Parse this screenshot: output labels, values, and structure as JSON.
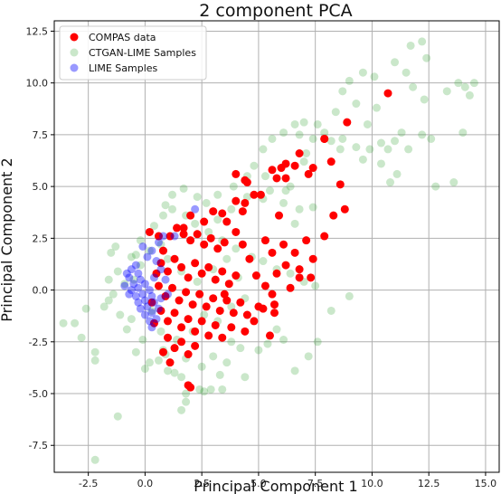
{
  "chart_data": {
    "type": "scatter",
    "title": "2 component PCA",
    "xlabel": "Principal Component 1",
    "ylabel": "Principal Component 2",
    "xlim": [
      -4.0,
      15.6
    ],
    "ylim": [
      -8.8,
      13.0
    ],
    "xticks": [
      -2.5,
      0.0,
      2.5,
      5.0,
      7.5,
      10.0,
      12.5,
      15.0
    ],
    "yticks": [
      -7.5,
      -5.0,
      -2.5,
      0.0,
      2.5,
      5.0,
      7.5,
      10.0,
      12.5
    ],
    "grid": true,
    "legend_position": "top-left",
    "series": [
      {
        "name": "CTGAN-LIME Samples",
        "color": "#2ca02c",
        "alpha": 0.25,
        "points": [
          [
            -3.6,
            -1.6
          ],
          [
            -3.1,
            -1.6
          ],
          [
            -2.8,
            -2.3
          ],
          [
            -2.2,
            -3.0
          ],
          [
            -2.2,
            -3.4
          ],
          [
            -2.6,
            -0.9
          ],
          [
            -1.8,
            -0.8
          ],
          [
            -1.6,
            -0.5
          ],
          [
            -1.6,
            0.5
          ],
          [
            -1.4,
            -0.2
          ],
          [
            -1.5,
            1.8
          ],
          [
            -1.3,
            2.1
          ],
          [
            -1.1,
            -1.2
          ],
          [
            -0.8,
            -1.9
          ],
          [
            -0.6,
            -1.4
          ],
          [
            -0.4,
            -3.0
          ],
          [
            -0.6,
            1.6
          ],
          [
            -0.2,
            2.4
          ],
          [
            -1.2,
            -6.1
          ],
          [
            -2.2,
            -8.2
          ],
          [
            0.0,
            -3.8
          ],
          [
            0.2,
            -3.5
          ],
          [
            0.6,
            -3.4
          ],
          [
            0.8,
            -2.9
          ],
          [
            1.0,
            -3.9
          ],
          [
            1.3,
            -4.0
          ],
          [
            1.6,
            -4.2
          ],
          [
            1.8,
            -5.0
          ],
          [
            1.6,
            -5.8
          ],
          [
            1.8,
            -5.4
          ],
          [
            2.4,
            -4.8
          ],
          [
            2.6,
            -4.9
          ],
          [
            2.9,
            -4.8
          ],
          [
            3.4,
            -4.8
          ],
          [
            3.6,
            -3.5
          ],
          [
            3.0,
            -3.2
          ],
          [
            3.8,
            -2.5
          ],
          [
            4.2,
            -2.8
          ],
          [
            4.4,
            -4.2
          ],
          [
            5.0,
            -2.9
          ],
          [
            5.4,
            -2.6
          ],
          [
            5.8,
            -1.9
          ],
          [
            6.1,
            -2.4
          ],
          [
            6.6,
            -3.9
          ],
          [
            7.2,
            -3.2
          ],
          [
            7.6,
            -2.5
          ],
          [
            8.2,
            -1.0
          ],
          [
            9.0,
            -0.3
          ],
          [
            7.5,
            0.2
          ],
          [
            7.0,
            0.4
          ],
          [
            6.4,
            0.8
          ],
          [
            5.8,
            1.0
          ],
          [
            5.2,
            1.4
          ],
          [
            4.7,
            1.6
          ],
          [
            4.0,
            2.0
          ],
          [
            3.4,
            2.4
          ],
          [
            2.8,
            2.8
          ],
          [
            2.2,
            3.2
          ],
          [
            1.8,
            3.6
          ],
          [
            1.2,
            3.9
          ],
          [
            0.8,
            3.6
          ],
          [
            0.4,
            3.1
          ],
          [
            0.6,
            2.6
          ],
          [
            3.2,
            3.4
          ],
          [
            3.8,
            3.9
          ],
          [
            4.5,
            4.5
          ],
          [
            5.3,
            5.5
          ],
          [
            5.2,
            4.4
          ],
          [
            6.1,
            4.2
          ],
          [
            6.4,
            5.0
          ],
          [
            6.2,
            4.8
          ],
          [
            6.8,
            3.9
          ],
          [
            7.4,
            4.0
          ],
          [
            6.6,
            3.2
          ],
          [
            5.5,
            4.8
          ],
          [
            6.8,
            7.5
          ],
          [
            7.1,
            6.6
          ],
          [
            7.4,
            7.3
          ],
          [
            7.0,
            6.2
          ],
          [
            7.9,
            7.6
          ],
          [
            8.2,
            7.2
          ],
          [
            8.6,
            6.8
          ],
          [
            8.7,
            7.3
          ],
          [
            9.3,
            6.9
          ],
          [
            9.6,
            6.3
          ],
          [
            9.9,
            6.8
          ],
          [
            9.8,
            8.0
          ],
          [
            10.4,
            7.1
          ],
          [
            10.2,
            8.8
          ],
          [
            10.7,
            6.8
          ],
          [
            11.0,
            7.2
          ],
          [
            11.3,
            7.6
          ],
          [
            11.6,
            6.8
          ],
          [
            12.2,
            7.5
          ],
          [
            12.6,
            7.3
          ],
          [
            12.3,
            9.2
          ],
          [
            11.8,
            9.8
          ],
          [
            11.5,
            10.5
          ],
          [
            11.0,
            11.0
          ],
          [
            11.7,
            11.8
          ],
          [
            12.2,
            12.0
          ],
          [
            12.4,
            11.2
          ],
          [
            13.3,
            9.6
          ],
          [
            13.8,
            10.0
          ],
          [
            14.1,
            9.8
          ],
          [
            14.5,
            10.0
          ],
          [
            14.3,
            9.4
          ],
          [
            14.0,
            7.6
          ],
          [
            12.8,
            5.0
          ],
          [
            13.6,
            5.2
          ],
          [
            11.1,
            5.6
          ],
          [
            10.8,
            5.2
          ],
          [
            10.4,
            6.1
          ],
          [
            10.1,
            10.3
          ],
          [
            9.6,
            10.5
          ],
          [
            9.0,
            10.1
          ],
          [
            8.7,
            9.6
          ],
          [
            9.3,
            9.0
          ],
          [
            8.4,
            8.6
          ],
          [
            7.0,
            8.1
          ],
          [
            7.6,
            8.0
          ],
          [
            6.6,
            8.0
          ],
          [
            6.1,
            7.6
          ],
          [
            5.6,
            7.3
          ],
          [
            5.2,
            6.8
          ],
          [
            4.8,
            6.0
          ],
          [
            4.5,
            5.5
          ],
          [
            3.9,
            5.0
          ],
          [
            3.2,
            4.6
          ],
          [
            2.7,
            4.2
          ],
          [
            2.3,
            4.5
          ],
          [
            1.7,
            4.9
          ],
          [
            1.2,
            4.6
          ],
          [
            0.9,
            4.1
          ],
          [
            -0.4,
            1.7
          ],
          [
            -0.2,
            1.2
          ],
          [
            0.3,
            -1.0
          ],
          [
            0.7,
            -2.0
          ],
          [
            1.4,
            -2.4
          ],
          [
            2.1,
            -2.0
          ],
          [
            2.6,
            -1.2
          ],
          [
            3.2,
            -1.5
          ],
          [
            3.8,
            -0.8
          ],
          [
            4.4,
            -0.4
          ],
          [
            3.0,
            1.0
          ],
          [
            3.6,
            1.5
          ],
          [
            4.1,
            0.6
          ],
          [
            2.3,
            0.4
          ],
          [
            1.6,
            0.9
          ],
          [
            1.0,
            1.5
          ],
          [
            -0.1,
            -2.4
          ],
          [
            0.9,
            -3.1
          ],
          [
            1.8,
            -3.3
          ],
          [
            2.5,
            -3.7
          ],
          [
            3.3,
            -4.1
          ],
          [
            -0.9,
            0.3
          ],
          [
            -1.2,
            0.9
          ],
          [
            -0.5,
            0.5
          ],
          [
            0.2,
            1.9
          ],
          [
            0.7,
            2.2
          ]
        ]
      },
      {
        "name": "COMPAS data",
        "color": "#ff0000",
        "alpha": 1.0,
        "points": [
          [
            0.2,
            2.8
          ],
          [
            0.6,
            2.6
          ],
          [
            0.8,
            1.9
          ],
          [
            1.1,
            2.6
          ],
          [
            1.4,
            3.0
          ],
          [
            1.7,
            2.7
          ],
          [
            2.0,
            2.4
          ],
          [
            2.3,
            2.7
          ],
          [
            2.6,
            2.2
          ],
          [
            2.9,
            2.5
          ],
          [
            3.2,
            2.0
          ],
          [
            3.5,
            2.3
          ],
          [
            0.7,
            1.3
          ],
          [
            1.0,
            0.9
          ],
          [
            1.3,
            1.5
          ],
          [
            1.6,
            1.1
          ],
          [
            1.9,
            0.6
          ],
          [
            2.2,
            1.3
          ],
          [
            2.5,
            0.8
          ],
          [
            2.8,
            1.1
          ],
          [
            3.1,
            0.5
          ],
          [
            3.4,
            0.9
          ],
          [
            3.7,
            0.3
          ],
          [
            4.0,
            0.7
          ],
          [
            0.6,
            0.2
          ],
          [
            0.9,
            -0.3
          ],
          [
            1.2,
            0.1
          ],
          [
            1.5,
            -0.5
          ],
          [
            1.8,
            -0.1
          ],
          [
            2.1,
            -0.7
          ],
          [
            2.4,
            -0.2
          ],
          [
            2.7,
            -0.8
          ],
          [
            3.0,
            -0.4
          ],
          [
            3.3,
            -1.0
          ],
          [
            3.6,
            -0.5
          ],
          [
            3.9,
            -1.1
          ],
          [
            4.2,
            -0.6
          ],
          [
            4.5,
            -1.2
          ],
          [
            0.7,
            -1.0
          ],
          [
            1.0,
            -1.5
          ],
          [
            1.3,
            -1.1
          ],
          [
            1.6,
            -1.8
          ],
          [
            1.9,
            -1.4
          ],
          [
            2.2,
            -2.0
          ],
          [
            2.5,
            -1.5
          ],
          [
            2.8,
            -2.2
          ],
          [
            3.1,
            -1.7
          ],
          [
            3.4,
            -2.3
          ],
          [
            1.0,
            -2.3
          ],
          [
            1.3,
            -2.8
          ],
          [
            1.6,
            -2.5
          ],
          [
            1.9,
            -3.1
          ],
          [
            2.2,
            -2.7
          ],
          [
            0.8,
            -3.0
          ],
          [
            1.1,
            -3.5
          ],
          [
            0.4,
            -1.6
          ],
          [
            0.5,
            0.8
          ],
          [
            0.3,
            -0.6
          ],
          [
            4.0,
            2.8
          ],
          [
            4.3,
            2.2
          ],
          [
            4.6,
            1.5
          ],
          [
            4.9,
            0.7
          ],
          [
            5.3,
            0.2
          ],
          [
            5.6,
            -0.2
          ],
          [
            5.0,
            -0.8
          ],
          [
            4.8,
            -1.5
          ],
          [
            4.4,
            -2.0
          ],
          [
            3.8,
            -1.8
          ],
          [
            3.5,
            -0.2
          ],
          [
            5.8,
            0.8
          ],
          [
            6.2,
            1.2
          ],
          [
            6.6,
            1.8
          ],
          [
            7.1,
            2.4
          ],
          [
            7.4,
            1.5
          ],
          [
            7.9,
            2.6
          ],
          [
            8.3,
            3.6
          ],
          [
            8.8,
            3.9
          ],
          [
            8.6,
            5.1
          ],
          [
            8.2,
            6.2
          ],
          [
            7.9,
            7.3
          ],
          [
            7.2,
            5.6
          ],
          [
            6.6,
            6.0
          ],
          [
            6.2,
            5.4
          ],
          [
            5.9,
            3.6
          ],
          [
            6.0,
            5.9
          ],
          [
            5.6,
            5.8
          ],
          [
            5.1,
            4.6
          ],
          [
            4.8,
            4.6
          ],
          [
            4.4,
            4.2
          ],
          [
            4.3,
            3.8
          ],
          [
            4.0,
            4.3
          ],
          [
            3.6,
            3.3
          ],
          [
            3.0,
            3.8
          ],
          [
            2.6,
            3.3
          ],
          [
            2.0,
            3.6
          ],
          [
            1.7,
            3.0
          ],
          [
            5.3,
            2.4
          ],
          [
            5.6,
            1.8
          ],
          [
            6.1,
            2.2
          ],
          [
            6.8,
            1.0
          ],
          [
            7.3,
            0.6
          ],
          [
            6.4,
            0.1
          ],
          [
            6.8,
            0.6
          ],
          [
            5.7,
            -0.7
          ],
          [
            5.5,
            -2.2
          ],
          [
            5.7,
            -1.1
          ],
          [
            5.2,
            -0.9
          ],
          [
            2.0,
            -4.7
          ],
          [
            1.9,
            -4.6
          ],
          [
            10.7,
            9.5
          ],
          [
            8.9,
            8.1
          ],
          [
            7.9,
            7.3
          ],
          [
            7.4,
            5.9
          ],
          [
            6.8,
            6.6
          ],
          [
            6.2,
            6.1
          ],
          [
            4.0,
            5.6
          ],
          [
            5.8,
            5.4
          ],
          [
            4.4,
            5.3
          ],
          [
            4.5,
            5.2
          ],
          [
            3.4,
            3.7
          ]
        ]
      },
      {
        "name": "LIME Samples",
        "color": "#0000ff",
        "alpha": 0.4,
        "points": [
          [
            -0.6,
            1.0
          ],
          [
            -0.4,
            1.2
          ],
          [
            -0.7,
            0.6
          ],
          [
            -0.3,
            0.8
          ],
          [
            -0.5,
            0.3
          ],
          [
            -0.2,
            0.5
          ],
          [
            -0.6,
            0.0
          ],
          [
            -0.3,
            0.1
          ],
          [
            0.0,
            0.3
          ],
          [
            -0.4,
            -0.3
          ],
          [
            -0.1,
            -0.2
          ],
          [
            0.2,
            0.0
          ],
          [
            -0.3,
            -0.6
          ],
          [
            0.0,
            -0.5
          ],
          [
            0.3,
            -0.3
          ],
          [
            -0.2,
            -0.9
          ],
          [
            0.1,
            -0.8
          ],
          [
            0.4,
            -0.6
          ],
          [
            0.0,
            -1.2
          ],
          [
            0.3,
            -1.1
          ],
          [
            0.6,
            -0.9
          ],
          [
            0.2,
            -1.5
          ],
          [
            0.5,
            -1.4
          ],
          [
            0.3,
            -1.8
          ],
          [
            0.1,
            1.6
          ],
          [
            0.3,
            1.9
          ],
          [
            0.5,
            1.4
          ],
          [
            0.7,
            1.0
          ],
          [
            0.6,
            2.3
          ],
          [
            0.9,
            0.5
          ],
          [
            -0.8,
            0.8
          ],
          [
            -0.9,
            0.2
          ],
          [
            -0.7,
            -0.2
          ],
          [
            0.8,
            2.6
          ],
          [
            1.3,
            2.6
          ],
          [
            1.0,
            -0.2
          ],
          [
            0.7,
            -0.4
          ],
          [
            0.4,
            0.6
          ],
          [
            2.2,
            3.9
          ],
          [
            -0.1,
            2.1
          ]
        ]
      }
    ]
  }
}
